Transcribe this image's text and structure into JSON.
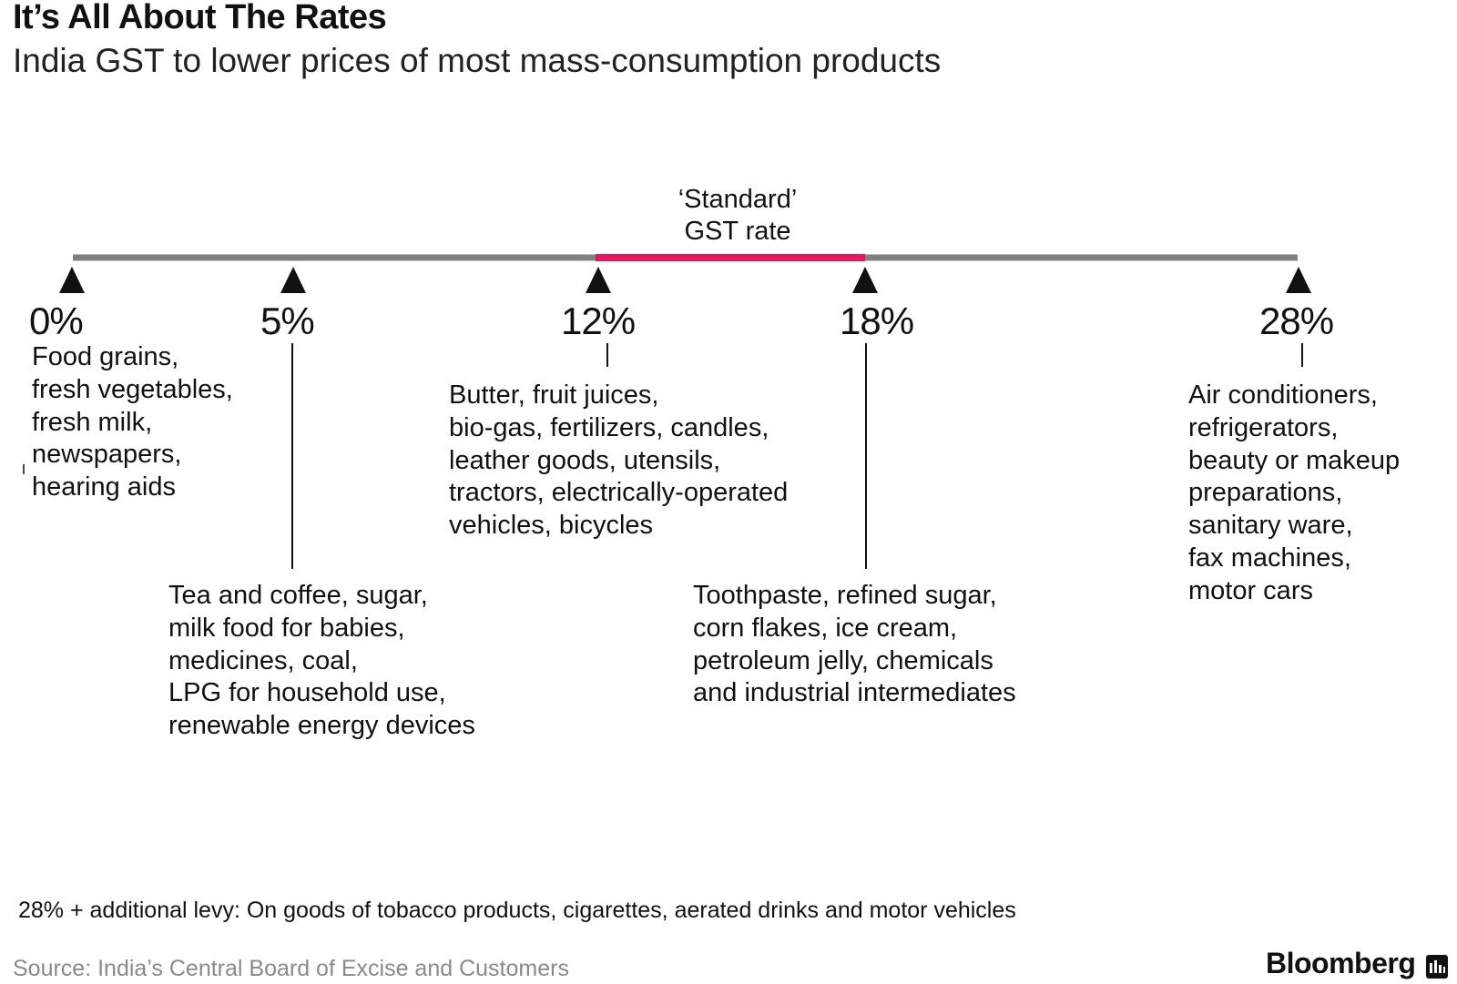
{
  "title": "It’s All About The Rates",
  "subtitle": "India GST to lower prices of most mass-consumption products",
  "standard_label": [
    "‘Standard’",
    "GST rate"
  ],
  "colors": {
    "axis": "#808080",
    "standard_band": "#e8175d",
    "marker": "#111111",
    "source_text": "#8a8a8a"
  },
  "rates": [
    {
      "label": "0%",
      "items": [
        "Food grains,",
        "fresh vegetables,",
        "fresh milk,",
        "newspapers,",
        "hearing aids"
      ]
    },
    {
      "label": "5%",
      "items": [
        "Tea and coffee, sugar,",
        "milk food for babies,",
        "medicines, coal,",
        "LPG for household use,",
        "renewable energy devices"
      ]
    },
    {
      "label": "12%",
      "items": [
        "Butter, fruit juices,",
        "bio-gas, fertilizers, candles,",
        "leather goods, utensils,",
        "tractors, electrically-operated",
        "vehicles, bicycles"
      ]
    },
    {
      "label": "18%",
      "items": [
        "Toothpaste, refined sugar,",
        "corn flakes, ice cream,",
        "petroleum jelly, chemicals",
        "and industrial intermediates"
      ]
    },
    {
      "label": "28%",
      "items": [
        "Air conditioners,",
        "refrigerators,",
        "beauty or makeup",
        "preparations,",
        "sanitary ware,",
        "fax machines,",
        "motor cars"
      ]
    }
  ],
  "note": "28% + additional levy: On goods of tobacco products, cigarettes, aerated drinks and motor vehicles",
  "source": "Source:  India’s Central Board of Excise and Customers",
  "brand": "Bloomberg",
  "brand_icon": "bloomberg-terminal-icon"
}
